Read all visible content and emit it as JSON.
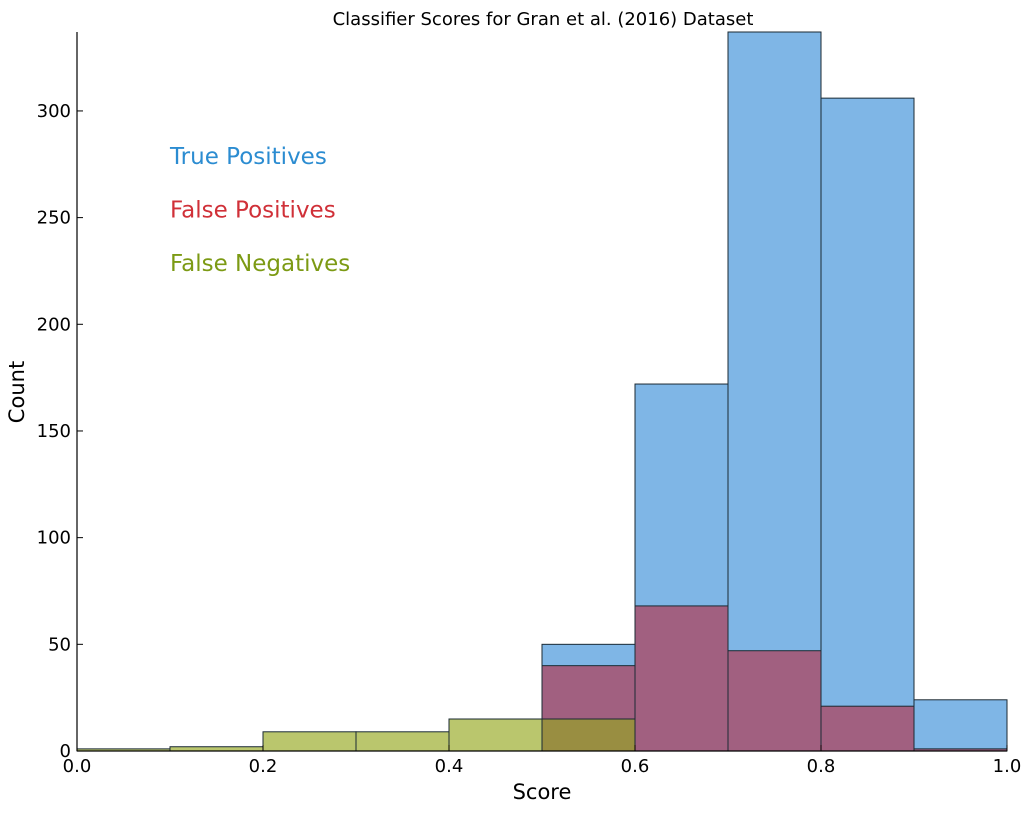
{
  "chart_data": {
    "type": "bar",
    "title": "Classifier Scores for Gran et al. (2016) Dataset",
    "xlabel": "Score",
    "ylabel": "Count",
    "xlim": [
      0.0,
      1.0
    ],
    "ylim": [
      0,
      337
    ],
    "grid": false,
    "bin_edges": [
      0.0,
      0.1,
      0.2,
      0.3,
      0.4,
      0.5,
      0.6,
      0.7,
      0.8,
      0.9,
      1.0
    ],
    "x_ticks": [
      "0.0",
      "0.2",
      "0.4",
      "0.6",
      "0.8",
      "1.0"
    ],
    "y_ticks": [
      "0",
      "50",
      "100",
      "150",
      "200",
      "250",
      "300"
    ],
    "legend": {
      "placement": "upper-left text labels"
    },
    "series": [
      {
        "name": "True Positives",
        "color": "#3a8fd9",
        "values": [
          0,
          0,
          0,
          0,
          0,
          50,
          172,
          337,
          306,
          24
        ]
      },
      {
        "name": "False Positives",
        "color": "#b3334a",
        "values": [
          0,
          0,
          0,
          0,
          0,
          40,
          68,
          47,
          21,
          1
        ]
      },
      {
        "name": "False Negatives",
        "color": "#95a81f",
        "values": [
          1,
          2,
          9,
          9,
          15,
          15,
          0,
          0,
          0,
          0
        ]
      }
    ],
    "legend_text_colors": [
      "#2b8cd1",
      "#d03038",
      "#7c9a14"
    ]
  }
}
